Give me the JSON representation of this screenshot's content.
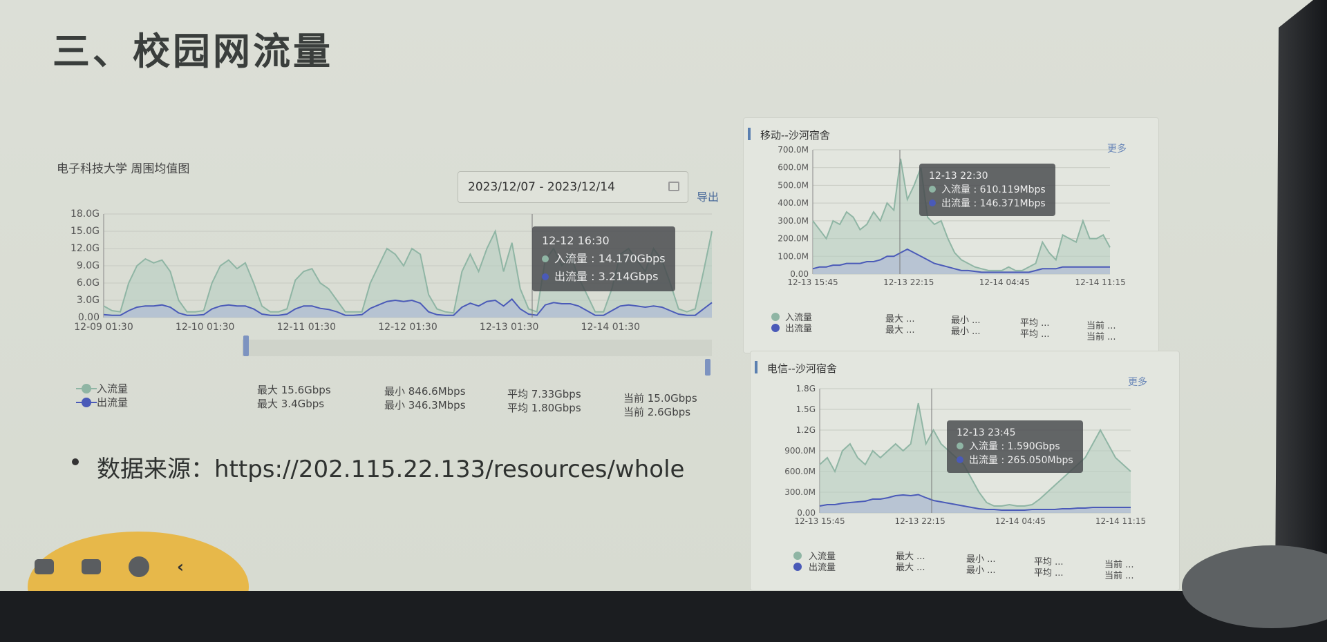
{
  "slide": {
    "title": "三、校园网流量",
    "source_label": "数据来源：",
    "source_url": "https://202.115.22.133/resources/whole"
  },
  "main_chart": {
    "caption": "电子科技大学 周围均值图",
    "date_range": "2023/12/07 - 2023/12/14",
    "export_label": "导出",
    "tooltip": {
      "time": "12-12 16:30",
      "in_label": "入流量",
      "in_value": "14.170Gbps",
      "out_label": "出流量",
      "out_value": "3.214Gbps"
    },
    "legend": {
      "in": {
        "name": "入流量",
        "max": "最大 15.6Gbps",
        "min": "最小 846.6Mbps",
        "avg": "平均 7.33Gbps",
        "cur": "当前 15.0Gbps"
      },
      "out": {
        "name": "出流量",
        "max": "最大 3.4Gbps",
        "min": "最小 346.3Mbps",
        "avg": "平均 1.80Gbps",
        "cur": "当前 2.6Gbps"
      }
    }
  },
  "panel_mobile": {
    "title": "移动--沙河宿舍",
    "more": "更多",
    "tooltip": {
      "time": "12-13 22:30",
      "in_label": "入流量",
      "in_value": "610.119Mbps",
      "out_label": "出流量",
      "out_value": "146.371Mbps"
    },
    "legend": {
      "in": "入流量",
      "out": "出流量",
      "max": "最大 ...",
      "min": "最小 ...",
      "avg": "平均 ...",
      "cur": "当前 ..."
    }
  },
  "panel_telecom": {
    "title": "电信--沙河宿舍",
    "more": "更多",
    "tooltip": {
      "time": "12-13 23:45",
      "in_label": "入流量",
      "in_value": "1.590Gbps",
      "out_label": "出流量",
      "out_value": "265.050Mbps"
    },
    "legend": {
      "in": "入流量",
      "out": "出流量",
      "max": "最大 ...",
      "min": "最小 ...",
      "avg": "平均 ...",
      "cur": "当前 ..."
    }
  },
  "colors": {
    "in_line": "#8fb5a4",
    "in_fill": "#b7cfc2",
    "out_line": "#4a5ab8",
    "out_fill": "#a9b4d8"
  },
  "chart_data": [
    {
      "type": "area",
      "title": "电子科技大学 周围均值图",
      "yunit": "Gbps",
      "yticks": [
        "0.00",
        "3.0G",
        "6.0G",
        "9.0G",
        "12.0G",
        "15.0G",
        "18.0G"
      ],
      "ylim": [
        0,
        18
      ],
      "xlim": [
        0,
        6
      ],
      "xticks": [
        "12-09 01:30",
        "12-10 01:30",
        "12-11 01:30",
        "12-12 01:30",
        "12-13 01:30",
        "12-14 01:30"
      ],
      "series": [
        {
          "name": "入流量",
          "values": [
            2.0,
            1.2,
            1.0,
            6.0,
            9.0,
            10.2,
            9.5,
            10.0,
            8.0,
            3.0,
            1.0,
            1.0,
            1.2,
            6.0,
            9.0,
            10.0,
            8.5,
            9.5,
            6.0,
            2.0,
            1.0,
            1.0,
            1.5,
            6.5,
            8.0,
            8.5,
            6.0,
            5.0,
            3.0,
            1.0,
            1.0,
            1.0,
            6.0,
            9.0,
            12.0,
            11.0,
            9.0,
            12.0,
            11.0,
            4.0,
            1.5,
            1.0,
            0.8,
            8.0,
            11.0,
            8.0,
            12.0,
            15.0,
            8.0,
            13.0,
            5.0,
            1.5,
            1.0,
            10.0,
            12.0,
            9.0,
            11.0,
            7.0,
            4.0,
            1.0,
            1.0,
            5.0,
            11.0,
            12.0,
            10.0,
            8.0,
            12.0,
            10.0,
            6.0,
            1.5,
            1.0,
            1.5,
            8.0,
            15.0
          ]
        },
        {
          "name": "出流量",
          "values": [
            0.5,
            0.4,
            0.4,
            1.2,
            1.8,
            2.0,
            2.0,
            2.2,
            1.8,
            0.8,
            0.4,
            0.4,
            0.5,
            1.5,
            2.0,
            2.2,
            2.0,
            2.0,
            1.5,
            0.6,
            0.4,
            0.4,
            0.6,
            1.5,
            2.0,
            2.0,
            1.6,
            1.4,
            1.0,
            0.4,
            0.4,
            0.5,
            1.6,
            2.2,
            2.8,
            3.0,
            2.8,
            3.0,
            2.5,
            1.0,
            0.5,
            0.4,
            0.4,
            1.8,
            2.5,
            2.0,
            2.8,
            3.0,
            2.0,
            3.2,
            1.5,
            0.6,
            0.4,
            2.2,
            2.6,
            2.4,
            2.4,
            2.0,
            1.2,
            0.4,
            0.4,
            1.2,
            2.0,
            2.2,
            2.0,
            1.8,
            2.0,
            1.8,
            1.2,
            0.6,
            0.4,
            0.4,
            1.5,
            2.6
          ]
        }
      ]
    },
    {
      "type": "area",
      "title": "移动--沙河宿舍",
      "yunit": "Mbps",
      "yticks": [
        "0.00",
        "100.0M",
        "200.0M",
        "300.0M",
        "400.0M",
        "500.0M",
        "600.0M",
        "700.0M"
      ],
      "ylim": [
        0,
        700
      ],
      "xlim": [
        0,
        3.1
      ],
      "xticks": [
        "12-13 15:45",
        "12-13 22:15",
        "12-14 04:45",
        "12-14 11:15"
      ],
      "series": [
        {
          "name": "入流量",
          "values": [
            300,
            250,
            200,
            300,
            280,
            350,
            320,
            250,
            280,
            350,
            300,
            400,
            360,
            650,
            420,
            500,
            600,
            320,
            280,
            300,
            200,
            120,
            80,
            60,
            40,
            30,
            20,
            20,
            20,
            40,
            20,
            20,
            40,
            60,
            180,
            120,
            80,
            220,
            200,
            180,
            300,
            200,
            200,
            220,
            150
          ]
        },
        {
          "name": "出流量",
          "values": [
            30,
            40,
            40,
            50,
            50,
            60,
            60,
            60,
            70,
            70,
            80,
            100,
            100,
            120,
            140,
            120,
            100,
            80,
            60,
            50,
            40,
            30,
            20,
            20,
            15,
            10,
            10,
            10,
            10,
            10,
            10,
            10,
            10,
            20,
            30,
            30,
            30,
            40,
            40,
            40,
            40,
            40,
            40,
            40,
            40
          ]
        }
      ]
    },
    {
      "type": "area",
      "title": "电信--沙河宿舍",
      "yunit": "Gbps",
      "yticks": [
        "0.00",
        "300.0M",
        "600.0M",
        "900.0M",
        "1.2G",
        "1.5G",
        "1.8G"
      ],
      "ylim": [
        0,
        1.8
      ],
      "xlim": [
        0,
        3.1
      ],
      "xticks": [
        "12-13 15:45",
        "12-13 22:15",
        "12-14 04:45",
        "12-14 11:15"
      ],
      "series": [
        {
          "name": "入流量",
          "values": [
            0.7,
            0.8,
            0.6,
            0.9,
            1.0,
            0.8,
            0.7,
            0.9,
            0.8,
            0.9,
            1.0,
            0.9,
            1.0,
            1.59,
            1.0,
            1.2,
            1.0,
            0.9,
            0.8,
            0.7,
            0.5,
            0.3,
            0.15,
            0.1,
            0.1,
            0.12,
            0.1,
            0.1,
            0.12,
            0.2,
            0.3,
            0.4,
            0.5,
            0.6,
            0.7,
            0.8,
            1.0,
            1.2,
            1.0,
            0.8,
            0.7,
            0.6
          ]
        },
        {
          "name": "出流量",
          "values": [
            0.1,
            0.12,
            0.12,
            0.14,
            0.15,
            0.16,
            0.17,
            0.2,
            0.2,
            0.22,
            0.25,
            0.26,
            0.25,
            0.265,
            0.22,
            0.18,
            0.16,
            0.14,
            0.12,
            0.1,
            0.08,
            0.06,
            0.05,
            0.05,
            0.04,
            0.04,
            0.04,
            0.04,
            0.05,
            0.05,
            0.05,
            0.05,
            0.06,
            0.06,
            0.07,
            0.07,
            0.08,
            0.08,
            0.08,
            0.08,
            0.08,
            0.08
          ]
        }
      ]
    }
  ]
}
